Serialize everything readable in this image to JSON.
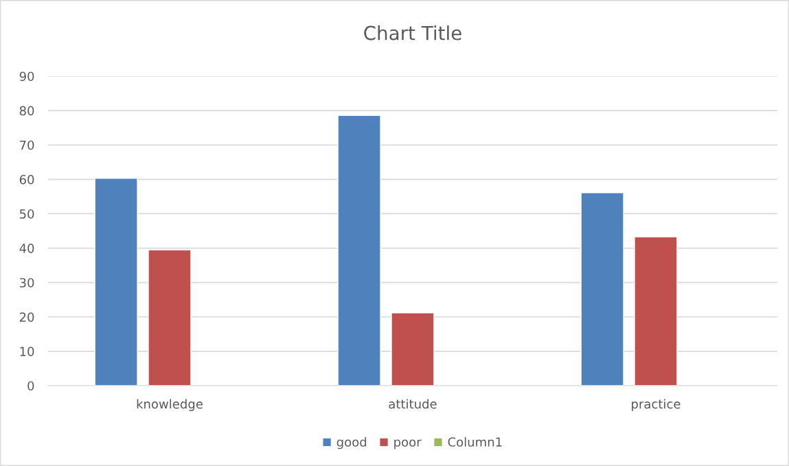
{
  "chart_data": {
    "type": "bar",
    "title": "Chart Title",
    "categories": [
      "knowledge",
      "attitude",
      "practice"
    ],
    "series": [
      {
        "name": "good",
        "color": "#4f81bd",
        "values": [
          60.3,
          78.6,
          56.1
        ]
      },
      {
        "name": "poor",
        "color": "#c0504d",
        "values": [
          39.5,
          21.2,
          43.3
        ]
      },
      {
        "name": "Column1",
        "color": "#9bbb59",
        "values": [
          null,
          null,
          null
        ]
      }
    ],
    "ylim": [
      0,
      90
    ],
    "yticks": [
      0,
      10,
      20,
      30,
      40,
      50,
      60,
      70,
      80,
      90
    ],
    "grid": "y",
    "legend": "bottom"
  }
}
